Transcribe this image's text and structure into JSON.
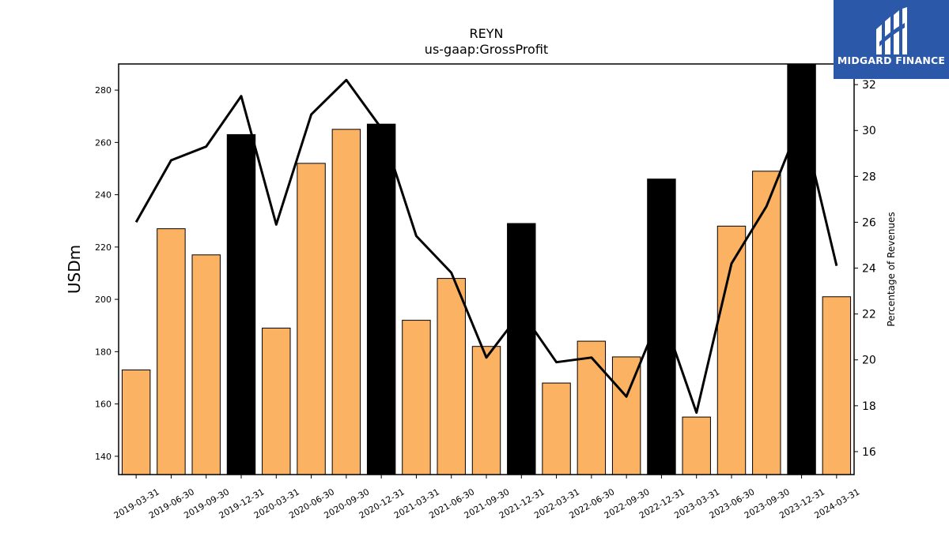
{
  "chart_data": {
    "type": "bar",
    "title": "REYN",
    "subtitle": "us-gaap:GrossProfit",
    "ylabel": "USDm",
    "y2label": "Percentage of Revenues",
    "ylim": [
      133,
      290
    ],
    "y2lim": [
      15,
      32.9
    ],
    "yticks": [
      140,
      160,
      180,
      200,
      220,
      240,
      260,
      280
    ],
    "y2ticks": [
      16,
      18,
      20,
      22,
      24,
      26,
      28,
      30,
      32
    ],
    "categories": [
      "2019-03-31",
      "2019-06-30",
      "2019-09-30",
      "2019-12-31",
      "2020-03-31",
      "2020-06-30",
      "2020-09-30",
      "2020-12-31",
      "2021-03-31",
      "2021-06-30",
      "2021-09-30",
      "2021-12-31",
      "2022-03-31",
      "2022-06-30",
      "2022-09-30",
      "2022-12-31",
      "2023-03-31",
      "2023-06-30",
      "2023-09-30",
      "2023-12-31",
      "2024-03-31"
    ],
    "series": [
      {
        "type": "bar",
        "values": [
          173,
          227,
          217,
          263,
          189,
          252,
          265,
          267,
          192,
          208,
          182,
          229,
          168,
          184,
          178,
          246,
          155,
          228,
          249,
          290,
          201
        ],
        "highlight": [
          false,
          false,
          false,
          true,
          false,
          false,
          false,
          true,
          false,
          false,
          false,
          true,
          false,
          false,
          false,
          true,
          false,
          false,
          false,
          true,
          false
        ]
      },
      {
        "type": "line",
        "axis": "right",
        "values": [
          26.0,
          28.7,
          29.3,
          31.5,
          25.9,
          30.7,
          32.2,
          30.1,
          25.4,
          23.8,
          20.1,
          22.1,
          19.9,
          20.1,
          18.4,
          22.1,
          17.7,
          24.2,
          26.7,
          30.5,
          24.1
        ]
      }
    ],
    "colors": {
      "bar": "#fbb262",
      "bar_highlight": "#000000",
      "line": "#000000"
    },
    "grid": false,
    "legend": "none"
  },
  "logo": {
    "text": "MIDGARD FINANCE",
    "bg": "#2b58a8"
  }
}
